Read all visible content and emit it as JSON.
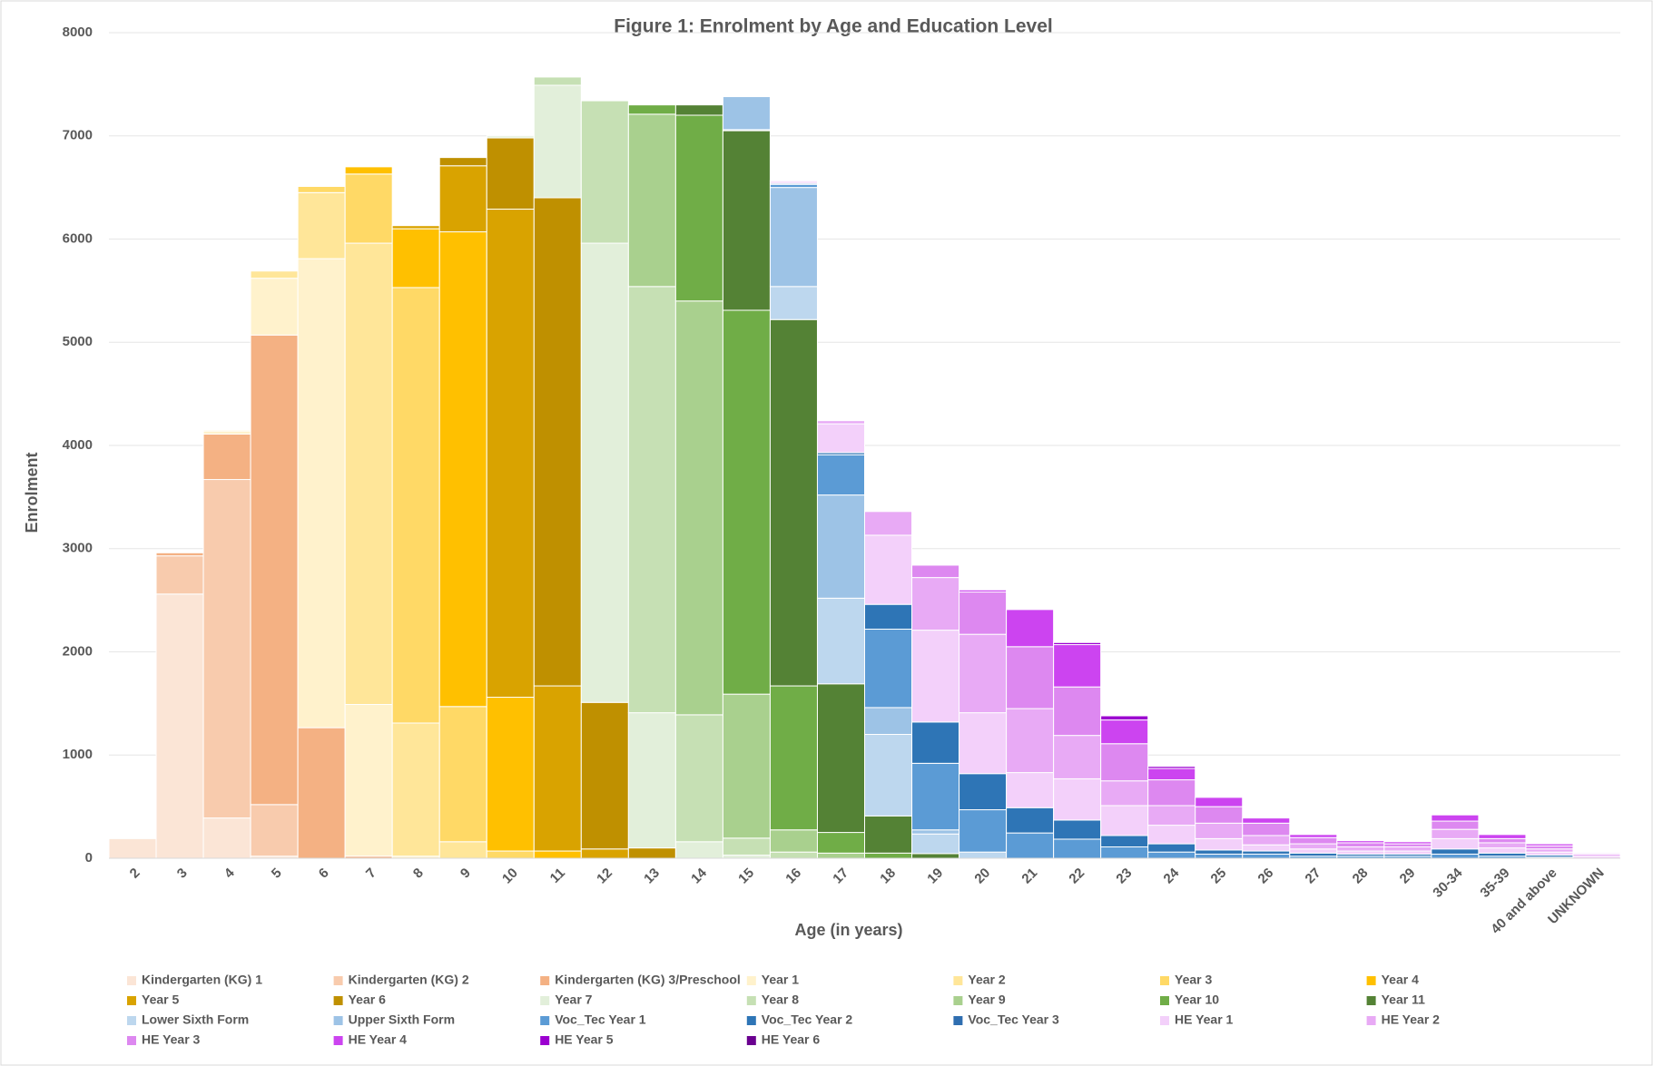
{
  "chart_data": {
    "type": "stacked_bar",
    "title": "Figure 1:  Enrolment by Age and Education Level",
    "x_label": "Age (in years)",
    "y_label": "Enrolment",
    "categories": [
      "2",
      "3",
      "4",
      "5",
      "6",
      "7",
      "8",
      "9",
      "10",
      "11",
      "12",
      "13",
      "14",
      "15",
      "16",
      "17",
      "18",
      "19",
      "20",
      "21",
      "22",
      "23",
      "24",
      "25",
      "26",
      "27",
      "28",
      "29",
      "30-34",
      "35-39",
      "40 and above",
      "UNKNOWN"
    ],
    "ylim": [
      0,
      8000
    ],
    "yticks": [
      0,
      1000,
      2000,
      3000,
      4000,
      5000,
      6000,
      7000,
      8000
    ],
    "grid": true,
    "legend": "bottom",
    "series": [
      {
        "name": "Kindergarten (KG) 1",
        "color": "#fbe5d6",
        "values": [
          190,
          2560,
          390,
          20,
          0,
          0,
          0,
          0,
          0,
          0,
          0,
          0,
          0,
          0,
          0,
          0,
          0,
          0,
          0,
          0,
          0,
          0,
          0,
          0,
          0,
          0,
          0,
          0,
          0,
          0,
          0,
          0
        ]
      },
      {
        "name": "Kindergarten (KG) 2",
        "color": "#f8cbad",
        "values": [
          0,
          370,
          3280,
          500,
          0,
          0,
          0,
          0,
          0,
          0,
          0,
          0,
          0,
          0,
          0,
          0,
          0,
          0,
          0,
          0,
          0,
          0,
          0,
          0,
          0,
          0,
          0,
          0,
          0,
          0,
          0,
          0
        ]
      },
      {
        "name": "Kindergarten (KG) 3/Preschool",
        "color": "#f4b183",
        "values": [
          0,
          30,
          440,
          4550,
          1265,
          20,
          0,
          0,
          0,
          0,
          0,
          0,
          0,
          0,
          0,
          0,
          0,
          0,
          0,
          0,
          0,
          0,
          0,
          0,
          0,
          0,
          0,
          0,
          0,
          0,
          0,
          0
        ]
      },
      {
        "name": "Year 1",
        "color": "#fff2cc",
        "values": [
          0,
          0,
          30,
          550,
          4545,
          1470,
          20,
          0,
          0,
          0,
          0,
          0,
          0,
          0,
          0,
          0,
          0,
          0,
          0,
          0,
          0,
          0,
          0,
          0,
          0,
          0,
          0,
          0,
          0,
          0,
          0,
          0
        ]
      },
      {
        "name": "Year 2",
        "color": "#ffe699",
        "values": [
          0,
          0,
          10,
          70,
          640,
          4470,
          1290,
          160,
          0,
          0,
          0,
          0,
          0,
          0,
          0,
          0,
          0,
          0,
          0,
          0,
          0,
          0,
          0,
          0,
          0,
          0,
          0,
          0,
          0,
          0,
          0,
          0
        ]
      },
      {
        "name": "Year 3",
        "color": "#ffd966",
        "values": [
          0,
          0,
          0,
          0,
          60,
          670,
          4220,
          1310,
          70,
          0,
          0,
          0,
          0,
          0,
          0,
          0,
          0,
          0,
          0,
          0,
          0,
          0,
          0,
          0,
          0,
          0,
          0,
          0,
          0,
          0,
          0,
          0
        ]
      },
      {
        "name": "Year 4",
        "color": "#ffc000",
        "values": [
          0,
          0,
          0,
          0,
          0,
          70,
          570,
          4600,
          1490,
          70,
          0,
          0,
          0,
          0,
          0,
          0,
          0,
          0,
          0,
          0,
          0,
          0,
          0,
          0,
          0,
          0,
          0,
          0,
          0,
          0,
          0,
          0
        ]
      },
      {
        "name": "Year 5",
        "color": "#d9a300",
        "values": [
          0,
          0,
          0,
          0,
          0,
          0,
          30,
          640,
          4730,
          1600,
          90,
          0,
          0,
          0,
          0,
          0,
          0,
          0,
          0,
          0,
          0,
          0,
          0,
          0,
          0,
          0,
          0,
          0,
          0,
          0,
          0,
          0
        ]
      },
      {
        "name": "Year 6",
        "color": "#bf9000",
        "values": [
          0,
          0,
          0,
          0,
          0,
          0,
          0,
          80,
          690,
          4730,
          1420,
          100,
          0,
          0,
          0,
          0,
          0,
          0,
          0,
          0,
          0,
          0,
          0,
          0,
          0,
          0,
          0,
          0,
          0,
          0,
          0,
          0
        ]
      },
      {
        "name": "Year 7",
        "color": "#e2efda",
        "values": [
          0,
          0,
          0,
          0,
          0,
          0,
          0,
          0,
          20,
          1090,
          4450,
          1310,
          160,
          30,
          0,
          0,
          0,
          0,
          0,
          0,
          0,
          0,
          0,
          0,
          0,
          0,
          0,
          0,
          0,
          0,
          0,
          0
        ]
      },
      {
        "name": "Year 8",
        "color": "#c6e0b4",
        "values": [
          0,
          0,
          0,
          0,
          0,
          0,
          0,
          0,
          0,
          80,
          1380,
          4130,
          1230,
          165,
          60,
          0,
          0,
          0,
          0,
          0,
          0,
          0,
          0,
          0,
          0,
          0,
          0,
          0,
          0,
          0,
          0,
          0
        ]
      },
      {
        "name": "Year 9",
        "color": "#a9d08e",
        "values": [
          0,
          0,
          0,
          0,
          0,
          0,
          0,
          0,
          0,
          0,
          0,
          1670,
          4010,
          1395,
          215,
          50,
          0,
          0,
          0,
          0,
          0,
          0,
          0,
          0,
          0,
          0,
          0,
          0,
          0,
          0,
          0,
          0
        ]
      },
      {
        "name": "Year 10",
        "color": "#70ad47",
        "values": [
          0,
          0,
          0,
          0,
          0,
          0,
          0,
          0,
          0,
          0,
          0,
          90,
          1800,
          3720,
          1395,
          200,
          50,
          0,
          0,
          0,
          0,
          0,
          0,
          0,
          0,
          0,
          0,
          0,
          0,
          0,
          0,
          0
        ]
      },
      {
        "name": "Year 11",
        "color": "#548235",
        "values": [
          0,
          0,
          0,
          0,
          0,
          0,
          0,
          0,
          0,
          0,
          0,
          0,
          100,
          1740,
          3550,
          1440,
          360,
          45,
          0,
          0,
          0,
          0,
          0,
          0,
          0,
          0,
          0,
          0,
          0,
          0,
          0,
          0
        ]
      },
      {
        "name": "Lower Sixth Form",
        "color": "#bdd7ee",
        "values": [
          0,
          0,
          0,
          0,
          0,
          0,
          0,
          0,
          0,
          0,
          0,
          0,
          0,
          10,
          320,
          830,
          790,
          190,
          60,
          0,
          0,
          0,
          0,
          0,
          0,
          0,
          0,
          0,
          0,
          0,
          0,
          0
        ]
      },
      {
        "name": "Upper Sixth Form",
        "color": "#9dc3e6",
        "values": [
          0,
          0,
          0,
          0,
          0,
          0,
          0,
          0,
          0,
          0,
          0,
          0,
          0,
          320,
          960,
          1000,
          260,
          40,
          0,
          0,
          0,
          0,
          0,
          0,
          0,
          0,
          0,
          0,
          0,
          0,
          0,
          0
        ]
      },
      {
        "name": "Voc_Tec Year 1",
        "color": "#5b9bd5",
        "values": [
          0,
          0,
          0,
          0,
          0,
          0,
          0,
          0,
          0,
          0,
          0,
          0,
          0,
          0,
          30,
          390,
          760,
          645,
          410,
          245,
          185,
          110,
          60,
          40,
          40,
          20,
          20,
          20,
          40,
          20,
          10,
          0
        ]
      },
      {
        "name": "Voc_Tec Year 2",
        "color": "#2e75b6",
        "values": [
          0,
          0,
          0,
          0,
          0,
          0,
          0,
          0,
          0,
          0,
          0,
          0,
          0,
          0,
          10,
          20,
          240,
          400,
          350,
          245,
          185,
          110,
          80,
          40,
          30,
          30,
          20,
          20,
          50,
          30,
          20,
          0
        ]
      },
      {
        "name": "Voc_Tec Year 3",
        "color": "#2f6eb0",
        "values": [
          0,
          0,
          0,
          0,
          0,
          0,
          0,
          0,
          0,
          0,
          0,
          0,
          0,
          0,
          0,
          0,
          0,
          0,
          0,
          0,
          0,
          0,
          0,
          0,
          0,
          0,
          0,
          0,
          0,
          0,
          0,
          0
        ]
      },
      {
        "name": "HE Year 1",
        "color": "#f3d0fa",
        "values": [
          0,
          0,
          0,
          0,
          0,
          0,
          0,
          0,
          0,
          0,
          0,
          0,
          0,
          0,
          20,
          280,
          670,
          890,
          590,
          340,
          400,
          290,
          180,
          110,
          60,
          40,
          30,
          30,
          100,
          50,
          30,
          20
        ]
      },
      {
        "name": "HE Year 2",
        "color": "#e8aaf5",
        "values": [
          0,
          0,
          0,
          0,
          0,
          0,
          0,
          0,
          0,
          0,
          0,
          0,
          0,
          0,
          10,
          30,
          230,
          510,
          760,
          620,
          420,
          240,
          190,
          150,
          90,
          50,
          40,
          40,
          90,
          50,
          30,
          20
        ]
      },
      {
        "name": "HE Year 3",
        "color": "#dd88f0",
        "values": [
          0,
          0,
          0,
          0,
          0,
          0,
          0,
          0,
          0,
          0,
          0,
          0,
          0,
          0,
          0,
          0,
          0,
          120,
          410,
          600,
          470,
          360,
          250,
          160,
          120,
          60,
          40,
          30,
          80,
          40,
          30,
          10
        ]
      },
      {
        "name": "HE Year 4",
        "color": "#cc44f0",
        "values": [
          0,
          0,
          0,
          0,
          0,
          0,
          0,
          0,
          0,
          0,
          0,
          0,
          0,
          0,
          0,
          0,
          0,
          0,
          20,
          360,
          410,
          230,
          110,
          90,
          50,
          30,
          20,
          20,
          60,
          40,
          20,
          0
        ]
      },
      {
        "name": "HE Year 5",
        "color": "#9b00d0",
        "values": [
          0,
          0,
          0,
          0,
          0,
          0,
          0,
          0,
          0,
          0,
          0,
          0,
          0,
          0,
          0,
          0,
          0,
          0,
          0,
          0,
          20,
          40,
          20,
          0,
          0,
          0,
          0,
          0,
          0,
          0,
          0,
          0
        ]
      },
      {
        "name": "HE Year 6",
        "color": "#6a0090",
        "values": [
          0,
          0,
          0,
          0,
          0,
          0,
          0,
          0,
          0,
          0,
          0,
          0,
          0,
          0,
          0,
          0,
          0,
          0,
          0,
          0,
          0,
          0,
          0,
          0,
          0,
          0,
          0,
          0,
          0,
          0,
          0,
          0
        ]
      }
    ]
  }
}
